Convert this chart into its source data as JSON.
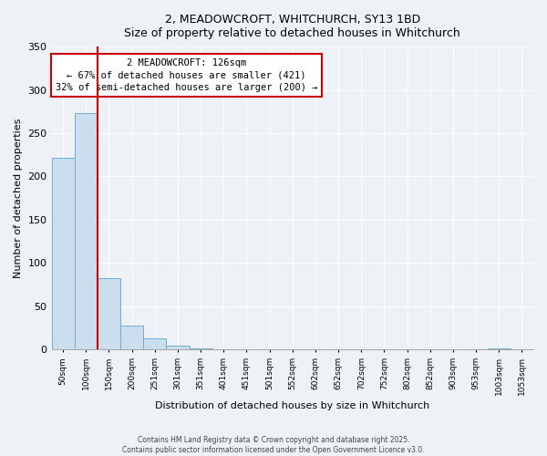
{
  "title_line1": "2, MEADOWCROFT, WHITCHURCH, SY13 1BD",
  "title_line2": "Size of property relative to detached houses in Whitchurch",
  "xlabel": "Distribution of detached houses by size in Whitchurch",
  "ylabel": "Number of detached properties",
  "bar_color": "#ccdded",
  "bar_edge_color": "#6aaed6",
  "background_color": "#eef2f7",
  "bin_labels": [
    "50sqm",
    "100sqm",
    "150sqm",
    "200sqm",
    "251sqm",
    "301sqm",
    "351sqm",
    "401sqm",
    "451sqm",
    "501sqm",
    "552sqm",
    "602sqm",
    "652sqm",
    "702sqm",
    "752sqm",
    "802sqm",
    "852sqm",
    "903sqm",
    "953sqm",
    "1003sqm",
    "1053sqm"
  ],
  "bar_heights": [
    222,
    273,
    83,
    28,
    13,
    4,
    1,
    0,
    0,
    0,
    0,
    0,
    0,
    0,
    0,
    0,
    0,
    0,
    0,
    1,
    0
  ],
  "ylim": [
    0,
    350
  ],
  "yticks": [
    0,
    50,
    100,
    150,
    200,
    250,
    300,
    350
  ],
  "marker_color": "#cc0000",
  "annotation_title": "2 MEADOWCROFT: 126sqm",
  "annotation_line1": "← 67% of detached houses are smaller (421)",
  "annotation_line2": "32% of semi-detached houses are larger (200) →",
  "annotation_box_color": "#ffffff",
  "annotation_box_edge": "#cc0000",
  "footer_line1": "Contains HM Land Registry data © Crown copyright and database right 2025.",
  "footer_line2": "Contains public sector information licensed under the Open Government Licence v3.0."
}
